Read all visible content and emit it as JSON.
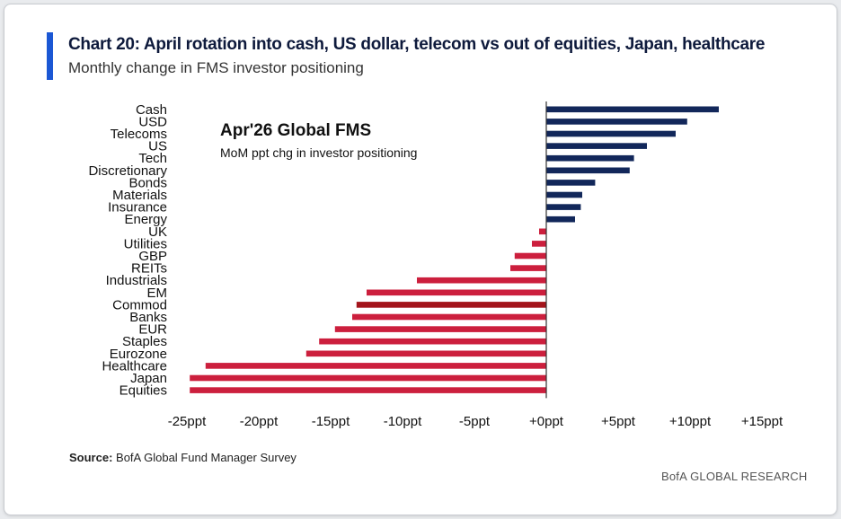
{
  "header": {
    "title": "Chart 20: April rotation into cash, US dollar, telecom vs out of equities, Japan, healthcare",
    "subtitle": "Monthly change in FMS investor positioning"
  },
  "footer": {
    "source_label": "Source:",
    "source_text": "BofA Global Fund Manager Survey",
    "brand": "BofA GLOBAL RESEARCH"
  },
  "colors": {
    "positive": "#12275a",
    "negative": "#cc1f3d",
    "highlight": "#a3141b",
    "accent_bar": "#1b57d4"
  },
  "chart_data": {
    "type": "bar",
    "orientation": "horizontal",
    "inset_title": "Apr'26 Global FMS",
    "inset_subtitle": "MoM ppt chg in investor positioning",
    "categories": [
      "Cash",
      "USD",
      "Telecoms",
      "US",
      "Tech",
      "Discretionary",
      "Bonds",
      "Materials",
      "Insurance",
      "Energy",
      "UK",
      "Utilities",
      "GBP",
      "REITs",
      "Industrials",
      "EM",
      "Commod",
      "Banks",
      "EUR",
      "Staples",
      "Eurozone",
      "Healthcare",
      "Japan",
      "Equities"
    ],
    "values": [
      12,
      9.8,
      9,
      7,
      6.1,
      5.8,
      3.4,
      2.5,
      2.4,
      2,
      -0.5,
      -1,
      -2.2,
      -2.5,
      -9,
      -12.5,
      -13.2,
      -13.5,
      -14.7,
      -15.8,
      -16.7,
      -23.7,
      -24.8,
      -24.8
    ],
    "highlight_category": "Commod",
    "x_ticks": [
      "-25ppt",
      "-20ppt",
      "-15ppt",
      "-10ppt",
      "-5ppt",
      "+0ppt",
      "+5ppt",
      "+10ppt",
      "+15ppt"
    ],
    "x_tick_values": [
      -25,
      -20,
      -15,
      -10,
      -5,
      0,
      5,
      10,
      15
    ],
    "xlim": [
      -25,
      15
    ],
    "grid": false,
    "legend": "none"
  }
}
